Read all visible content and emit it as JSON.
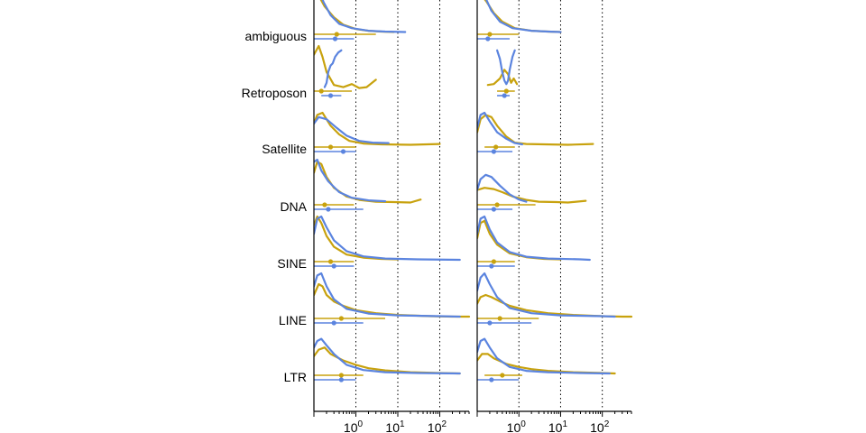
{
  "chart_data": {
    "type": "ridgeline",
    "x_scale": "log10",
    "xlim": [
      0.1,
      500
    ],
    "grid": "dotted vertical lines at 1, 10, 100",
    "legend": "none",
    "categories": [
      "ambiguous",
      "Retroposon",
      "Satellite",
      "DNA",
      "SINE",
      "LINE",
      "LTR"
    ],
    "x_tick_labels": [
      {
        "base": "10",
        "exp": "0",
        "value": 1
      },
      {
        "base": "10",
        "exp": "1",
        "value": 10
      },
      {
        "base": "10",
        "exp": "2",
        "value": 100
      }
    ],
    "colors": {
      "gold": "#C8A20E",
      "blue": "#5B84DF",
      "axis": "#000000"
    },
    "panels": [
      {
        "summaries": {
          "ambiguous": {
            "gold": {
              "median": 0.35,
              "lo": 0.1,
              "hi": 3.0
            },
            "blue": {
              "median": 0.32,
              "lo": 0.1,
              "hi": 0.9
            }
          },
          "Retroposon": {
            "gold": {
              "median": 0.15,
              "lo": 0.1,
              "hi": 0.8
            },
            "blue": {
              "median": 0.25,
              "lo": 0.15,
              "hi": 0.45
            }
          },
          "Satellite": {
            "gold": {
              "median": 0.25,
              "lo": 0.1,
              "hi": 1.0
            },
            "blue": {
              "median": 0.5,
              "lo": 0.1,
              "hi": 1.0
            }
          },
          "DNA": {
            "gold": {
              "median": 0.18,
              "lo": 0.1,
              "hi": 0.9
            },
            "blue": {
              "median": 0.22,
              "lo": 0.1,
              "hi": 1.5
            }
          },
          "SINE": {
            "gold": {
              "median": 0.25,
              "lo": 0.1,
              "hi": 0.9
            },
            "blue": {
              "median": 0.3,
              "lo": 0.1,
              "hi": 0.9
            }
          },
          "LINE": {
            "gold": {
              "median": 0.45,
              "lo": 0.1,
              "hi": 5.0
            },
            "blue": {
              "median": 0.3,
              "lo": 0.1,
              "hi": 1.5
            }
          },
          "LTR": {
            "gold": {
              "median": 0.45,
              "lo": 0.1,
              "hi": 1.5
            },
            "blue": {
              "median": 0.45,
              "lo": 0.1,
              "hi": 1.0
            }
          }
        },
        "densities": {
          "ambiguous": {
            "gold": {
              "x": [
                0.1,
                0.13,
                0.18,
                0.3,
                0.5,
                1,
                2,
                4,
                8
              ],
              "y": [
                1.0,
                0.85,
                0.6,
                0.35,
                0.18,
                0.08,
                0.04,
                0.02,
                0.01
              ]
            },
            "blue": {
              "x": [
                0.1,
                0.13,
                0.17,
                0.25,
                0.4,
                0.8,
                2,
                5,
                15
              ],
              "y": [
                0.9,
                1.0,
                0.7,
                0.4,
                0.2,
                0.1,
                0.04,
                0.02,
                0.01
              ]
            }
          },
          "Retroposon": {
            "gold": {
              "x": [
                0.1,
                0.13,
                0.16,
                0.2,
                0.3,
                0.5,
                0.8,
                1.2,
                1.8,
                3.0
              ],
              "y": [
                0.8,
                1.0,
                0.75,
                0.4,
                0.1,
                0.05,
                0.12,
                0.03,
                0.05,
                0.22
              ]
            },
            "blue": {
              "x": [
                0.18,
                0.2,
                0.22,
                0.25,
                0.28,
                0.32,
                0.38,
                0.45
              ],
              "y": [
                0.05,
                0.15,
                0.4,
                0.55,
                0.6,
                0.75,
                0.85,
                0.9
              ]
            }
          },
          "Satellite": {
            "gold": {
              "x": [
                0.1,
                0.12,
                0.16,
                0.25,
                0.4,
                0.7,
                1.5,
                4,
                20,
                100
              ],
              "y": [
                0.5,
                0.7,
                0.75,
                0.45,
                0.25,
                0.1,
                0.04,
                0.02,
                0.01,
                0.03
              ]
            },
            "blue": {
              "x": [
                0.1,
                0.13,
                0.2,
                0.35,
                0.6,
                1.2,
                2.5,
                6
              ],
              "y": [
                0.5,
                0.65,
                0.6,
                0.4,
                0.22,
                0.1,
                0.06,
                0.05
              ]
            }
          },
          "DNA": {
            "gold": {
              "x": [
                0.1,
                0.12,
                0.15,
                0.2,
                0.3,
                0.6,
                1.2,
                3,
                8,
                20,
                35
              ],
              "y": [
                0.7,
                0.95,
                0.9,
                0.6,
                0.35,
                0.15,
                0.07,
                0.03,
                0.02,
                0.01,
                0.08
              ]
            },
            "blue": {
              "x": [
                0.1,
                0.12,
                0.15,
                0.22,
                0.4,
                0.8,
                2,
                5
              ],
              "y": [
                0.95,
                1.0,
                0.75,
                0.5,
                0.25,
                0.12,
                0.06,
                0.04
              ]
            }
          },
          "SINE": {
            "gold": {
              "x": [
                0.1,
                0.12,
                0.15,
                0.2,
                0.3,
                0.6,
                1.5,
                4,
                10
              ],
              "y": [
                0.8,
                1.0,
                0.85,
                0.55,
                0.3,
                0.12,
                0.05,
                0.02,
                0.01
              ]
            },
            "blue": {
              "x": [
                0.1,
                0.12,
                0.15,
                0.2,
                0.3,
                0.6,
                1.5,
                5,
                30,
                300
              ],
              "y": [
                0.6,
                0.95,
                1.0,
                0.75,
                0.45,
                0.2,
                0.08,
                0.03,
                0.01,
                0.0
              ]
            }
          },
          "LINE": {
            "gold": {
              "x": [
                0.1,
                0.13,
                0.16,
                0.2,
                0.3,
                0.5,
                1,
                3,
                10,
                60,
                200,
                500
              ],
              "y": [
                0.5,
                0.75,
                0.7,
                0.5,
                0.35,
                0.25,
                0.15,
                0.08,
                0.04,
                0.01,
                0.0,
                0.0
              ]
            },
            "blue": {
              "x": [
                0.1,
                0.12,
                0.15,
                0.2,
                0.3,
                0.6,
                2,
                10,
                100,
                300
              ],
              "y": [
                0.7,
                0.95,
                1.0,
                0.7,
                0.4,
                0.18,
                0.07,
                0.03,
                0.01,
                0.0
              ]
            }
          },
          "LTR": {
            "gold": {
              "x": [
                0.1,
                0.13,
                0.18,
                0.25,
                0.5,
                1,
                2,
                5,
                20,
                100,
                300
              ],
              "y": [
                0.4,
                0.55,
                0.6,
                0.45,
                0.3,
                0.2,
                0.12,
                0.07,
                0.03,
                0.01,
                0.0
              ]
            },
            "blue": {
              "x": [
                0.1,
                0.12,
                0.15,
                0.2,
                0.3,
                0.6,
                1.5,
                5,
                30,
                300
              ],
              "y": [
                0.6,
                0.75,
                0.8,
                0.65,
                0.45,
                0.2,
                0.08,
                0.03,
                0.01,
                0.0
              ]
            }
          }
        }
      },
      {
        "summaries": {
          "ambiguous": {
            "gold": {
              "median": 0.2,
              "lo": 0.1,
              "hi": 1.0
            },
            "blue": {
              "median": 0.18,
              "lo": 0.1,
              "hi": 0.6
            }
          },
          "Retroposon": {
            "gold": {
              "median": 0.5,
              "lo": 0.3,
              "hi": 0.8
            },
            "blue": {
              "median": 0.45,
              "lo": 0.3,
              "hi": 0.6
            }
          },
          "Satellite": {
            "gold": {
              "median": 0.28,
              "lo": 0.15,
              "hi": 0.8
            },
            "blue": {
              "median": 0.25,
              "lo": 0.1,
              "hi": 0.7
            }
          },
          "DNA": {
            "gold": {
              "median": 0.3,
              "lo": 0.1,
              "hi": 2.5
            },
            "blue": {
              "median": 0.25,
              "lo": 0.1,
              "hi": 0.7
            }
          },
          "SINE": {
            "gold": {
              "median": 0.25,
              "lo": 0.1,
              "hi": 0.8
            },
            "blue": {
              "median": 0.22,
              "lo": 0.1,
              "hi": 0.8
            }
          },
          "LINE": {
            "gold": {
              "median": 0.35,
              "lo": 0.1,
              "hi": 3.0
            },
            "blue": {
              "median": 0.2,
              "lo": 0.1,
              "hi": 2.0
            }
          },
          "LTR": {
            "gold": {
              "median": 0.4,
              "lo": 0.15,
              "hi": 1.2
            },
            "blue": {
              "median": 0.22,
              "lo": 0.1,
              "hi": 1.0
            }
          }
        },
        "densities": {
          "ambiguous": {
            "gold": {
              "x": [
                0.1,
                0.13,
                0.17,
                0.25,
                0.4,
                0.8,
                2,
                5,
                10
              ],
              "y": [
                0.8,
                0.85,
                0.7,
                0.45,
                0.25,
                0.1,
                0.04,
                0.02,
                0.01
              ]
            },
            "blue": {
              "x": [
                0.1,
                0.12,
                0.15,
                0.22,
                0.35,
                0.7,
                2,
                5,
                10
              ],
              "y": [
                0.9,
                1.0,
                0.85,
                0.5,
                0.25,
                0.1,
                0.04,
                0.02,
                0.01
              ]
            }
          },
          "Retroposon": {
            "gold": {
              "x": [
                0.18,
                0.25,
                0.35,
                0.45,
                0.55,
                0.65,
                0.75,
                0.9
              ],
              "y": [
                0.1,
                0.12,
                0.25,
                0.45,
                0.35,
                0.15,
                0.25,
                0.12
              ]
            },
            "blue": {
              "x": [
                0.3,
                0.35,
                0.4,
                0.45,
                0.5,
                0.55,
                0.6,
                0.7,
                0.8
              ],
              "y": [
                0.9,
                0.7,
                0.4,
                0.2,
                0.12,
                0.2,
                0.45,
                0.75,
                0.9
              ]
            }
          },
          "Satellite": {
            "gold": {
              "x": [
                0.1,
                0.12,
                0.16,
                0.22,
                0.3,
                0.5,
                0.8,
                1.5,
                4,
                15,
                60
              ],
              "y": [
                0.3,
                0.6,
                0.7,
                0.65,
                0.45,
                0.2,
                0.06,
                0.03,
                0.02,
                0.01,
                0.03
              ]
            },
            "blue": {
              "x": [
                0.1,
                0.12,
                0.15,
                0.2,
                0.3,
                0.5,
                0.8,
                1.2
              ],
              "y": [
                0.4,
                0.7,
                0.75,
                0.55,
                0.3,
                0.15,
                0.05,
                0.02
              ]
            }
          },
          "DNA": {
            "gold": {
              "x": [
                0.1,
                0.15,
                0.25,
                0.4,
                0.7,
                1.5,
                3,
                8,
                15,
                40
              ],
              "y": [
                0.3,
                0.35,
                0.32,
                0.25,
                0.15,
                0.07,
                0.03,
                0.02,
                0.01,
                0.05
              ]
            },
            "blue": {
              "x": [
                0.1,
                0.12,
                0.16,
                0.22,
                0.35,
                0.6,
                1,
                1.5
              ],
              "y": [
                0.3,
                0.55,
                0.65,
                0.6,
                0.4,
                0.2,
                0.08,
                0.03
              ]
            }
          },
          "SINE": {
            "gold": {
              "x": [
                0.1,
                0.12,
                0.15,
                0.2,
                0.3,
                0.6,
                1.5,
                4,
                10
              ],
              "y": [
                0.5,
                0.85,
                0.9,
                0.6,
                0.35,
                0.15,
                0.06,
                0.02,
                0.01
              ]
            },
            "blue": {
              "x": [
                0.1,
                0.12,
                0.15,
                0.2,
                0.3,
                0.6,
                1.5,
                5,
                30,
                50
              ],
              "y": [
                0.6,
                0.95,
                1.0,
                0.7,
                0.4,
                0.18,
                0.07,
                0.03,
                0.01,
                0.0
              ]
            }
          },
          "LINE": {
            "gold": {
              "x": [
                0.1,
                0.12,
                0.16,
                0.22,
                0.35,
                0.6,
                1.5,
                5,
                20,
                100,
                300,
                500
              ],
              "y": [
                0.3,
                0.45,
                0.5,
                0.45,
                0.35,
                0.25,
                0.15,
                0.08,
                0.04,
                0.01,
                0.0,
                0.0
              ]
            },
            "blue": {
              "x": [
                0.1,
                0.12,
                0.15,
                0.2,
                0.3,
                0.6,
                2,
                10,
                100,
                200
              ],
              "y": [
                0.6,
                0.9,
                1.0,
                0.75,
                0.45,
                0.2,
                0.08,
                0.03,
                0.01,
                0.0
              ]
            }
          },
          "LTR": {
            "gold": {
              "x": [
                0.1,
                0.13,
                0.18,
                0.25,
                0.5,
                1,
                2,
                5,
                20,
                100,
                200
              ],
              "y": [
                0.3,
                0.45,
                0.45,
                0.35,
                0.22,
                0.15,
                0.1,
                0.06,
                0.03,
                0.01,
                0.0
              ]
            },
            "blue": {
              "x": [
                0.1,
                0.12,
                0.15,
                0.2,
                0.3,
                0.6,
                1.5,
                5,
                30,
                150
              ],
              "y": [
                0.5,
                0.75,
                0.8,
                0.6,
                0.35,
                0.15,
                0.06,
                0.03,
                0.01,
                0.0
              ]
            }
          }
        }
      }
    ]
  }
}
